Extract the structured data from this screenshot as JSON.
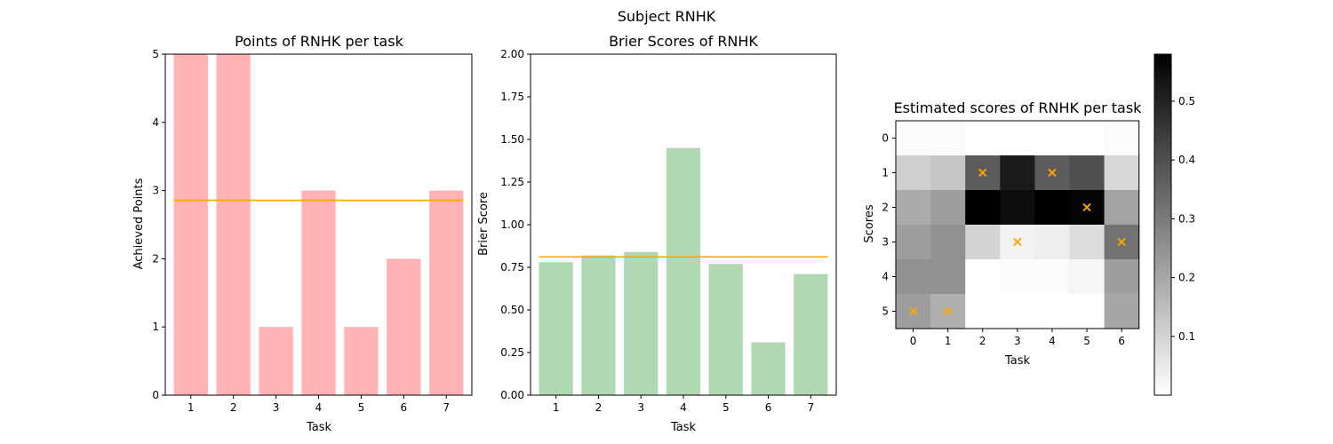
{
  "figure_title": "Subject RNHK",
  "chart_data": [
    {
      "type": "bar",
      "title": "Points of RNHK per task",
      "xlabel": "Task",
      "ylabel": "Achieved Points",
      "categories": [
        "1",
        "2",
        "3",
        "4",
        "5",
        "6",
        "7"
      ],
      "values": [
        5,
        5,
        1,
        3,
        1,
        2,
        3
      ],
      "ylim": [
        0,
        5
      ],
      "yticks": [
        "0",
        "1",
        "2",
        "3",
        "4",
        "5"
      ],
      "bar_color": "#ffb3b3",
      "mean_line": 2.857,
      "mean_line_color": "#ffa500",
      "grid": false
    },
    {
      "type": "bar",
      "title": "Brier Scores of RNHK",
      "xlabel": "Task",
      "ylabel": "Brier Score",
      "categories": [
        "1",
        "2",
        "3",
        "4",
        "5",
        "6",
        "7"
      ],
      "values": [
        0.78,
        0.82,
        0.84,
        1.45,
        0.77,
        0.31,
        0.71
      ],
      "ylim": [
        0,
        2
      ],
      "yticks": [
        "0.00",
        "0.25",
        "0.50",
        "0.75",
        "1.00",
        "1.25",
        "1.50",
        "1.75",
        "2.00"
      ],
      "bar_color": "#b2d8b2",
      "mean_line": 0.811,
      "mean_line_color": "#ffa500",
      "grid": false
    },
    {
      "type": "heatmap",
      "title": "Estimated scores of RNHK per task",
      "xlabel": "Task",
      "ylabel": "Scores",
      "x": [
        "0",
        "1",
        "2",
        "3",
        "4",
        "5",
        "6"
      ],
      "y": [
        "0",
        "1",
        "2",
        "3",
        "4",
        "5"
      ],
      "colormap": "Greys",
      "vmin": 0.0,
      "vmax": 0.58,
      "colorbar_ticks": [
        "0.1",
        "0.2",
        "0.3",
        "0.4",
        "0.5"
      ],
      "colorbar_tick_values": [
        0.1,
        0.2,
        0.3,
        0.4,
        0.5
      ],
      "values": [
        [
          0.01,
          0.01,
          0.0,
          0.0,
          0.0,
          0.0,
          0.01
        ],
        [
          0.11,
          0.13,
          0.37,
          0.52,
          0.37,
          0.4,
          0.09
        ],
        [
          0.19,
          0.22,
          0.58,
          0.55,
          0.58,
          0.57,
          0.21
        ],
        [
          0.22,
          0.25,
          0.1,
          0.03,
          0.04,
          0.08,
          0.32
        ],
        [
          0.25,
          0.25,
          0.0,
          0.01,
          0.01,
          0.02,
          0.22
        ],
        [
          0.22,
          0.18,
          0.0,
          0.0,
          0.0,
          0.0,
          0.2
        ]
      ],
      "markers": [
        {
          "task": 0,
          "score": 5
        },
        {
          "task": 1,
          "score": 5
        },
        {
          "task": 2,
          "score": 1
        },
        {
          "task": 3,
          "score": 3
        },
        {
          "task": 4,
          "score": 1
        },
        {
          "task": 5,
          "score": 2
        },
        {
          "task": 6,
          "score": 3
        }
      ],
      "marker_symbol": "×",
      "marker_color": "#ffa500"
    }
  ]
}
